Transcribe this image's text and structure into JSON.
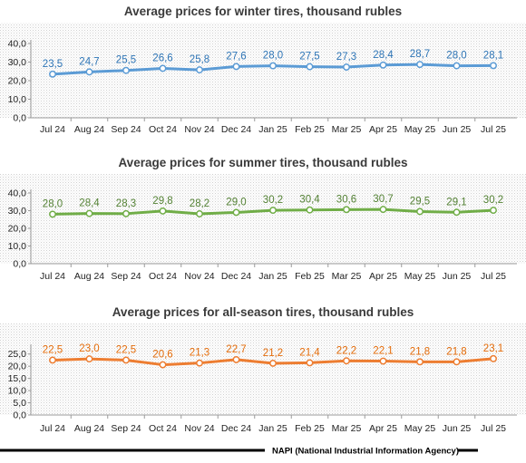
{
  "footer": {
    "text": "NAPI (National Industrial Information Agency)"
  },
  "chart_data": [
    {
      "type": "line",
      "title": "Average prices for winter tires, thousand rubles",
      "categories": [
        "Jul 24",
        "Aug 24",
        "Sep 24",
        "Oct 24",
        "Nov 24",
        "Dec 24",
        "Jan 25",
        "Feb 25",
        "Mar 25",
        "Apr 25",
        "May 25",
        "Jun 25",
        "Jul 25"
      ],
      "series": [
        {
          "values": [
            23.5,
            24.7,
            25.5,
            26.6,
            25.8,
            27.6,
            28.0,
            27.5,
            27.3,
            28.4,
            28.7,
            28.0,
            28.1
          ],
          "labels": [
            "23,5",
            "24,7",
            "25,5",
            "26,6",
            "25,8",
            "27,6",
            "28,0",
            "27,5",
            "27,3",
            "28,4",
            "28,7",
            "28,0",
            "28,1"
          ],
          "color": "#5b9bd5",
          "label_color": "#2e75b6"
        }
      ],
      "yticks": [
        "0,0",
        "10,0",
        "20,0",
        "30,0",
        "40,0"
      ],
      "ytick_values": [
        0,
        10,
        20,
        30,
        40
      ],
      "ylim": [
        0,
        40
      ],
      "background": "dotted"
    },
    {
      "type": "line",
      "title": "Average prices for summer tires, thousand rubles",
      "categories": [
        "Jul 24",
        "Aug 24",
        "Sep 24",
        "Oct 24",
        "Nov 24",
        "Dec 24",
        "Jan 25",
        "Feb 25",
        "Mar 25",
        "Apr 25",
        "May 25",
        "Jun 25",
        "Jul 25"
      ],
      "series": [
        {
          "values": [
            28.0,
            28.4,
            28.3,
            29.8,
            28.2,
            29.0,
            30.2,
            30.4,
            30.6,
            30.7,
            29.5,
            29.1,
            30.2
          ],
          "labels": [
            "28,0",
            "28,4",
            "28,3",
            "29,8",
            "28,2",
            "29,0",
            "30,2",
            "30,4",
            "30,6",
            "30,7",
            "29,5",
            "29,1",
            "30,2"
          ],
          "color": "#70ad47",
          "label_color": "#548235"
        }
      ],
      "yticks": [
        "0,0",
        "10,0",
        "20,0",
        "30,0",
        "40,0"
      ],
      "ytick_values": [
        0,
        10,
        20,
        30,
        40
      ],
      "ylim": [
        0,
        40
      ],
      "background": "dotted"
    },
    {
      "type": "line",
      "title": "Average prices for all-season tires, thousand rubles",
      "categories": [
        "Jul 24",
        "Aug 24",
        "Sep 24",
        "Oct 24",
        "Nov 24",
        "Dec 24",
        "Jan 25",
        "Feb 25",
        "Mar 25",
        "Apr 25",
        "May 25",
        "Jun 25",
        "Jul 25"
      ],
      "series": [
        {
          "values": [
            22.5,
            23.0,
            22.5,
            20.6,
            21.3,
            22.7,
            21.2,
            21.4,
            22.2,
            22.1,
            21.8,
            21.8,
            23.1
          ],
          "labels": [
            "22,5",
            "23,0",
            "22,5",
            "20,6",
            "21,3",
            "22,7",
            "21,2",
            "21,4",
            "22,2",
            "22,1",
            "21,8",
            "21,8",
            "23,1"
          ],
          "color": "#ed7d31",
          "label_color": "#e46c0a"
        }
      ],
      "yticks": [
        "0,0",
        "5,0",
        "10,0",
        "15,0",
        "20,0",
        "25,0"
      ],
      "ytick_values": [
        0,
        5,
        10,
        15,
        20,
        25
      ],
      "ylim": [
        0,
        27.5
      ],
      "background": "dotted"
    }
  ]
}
